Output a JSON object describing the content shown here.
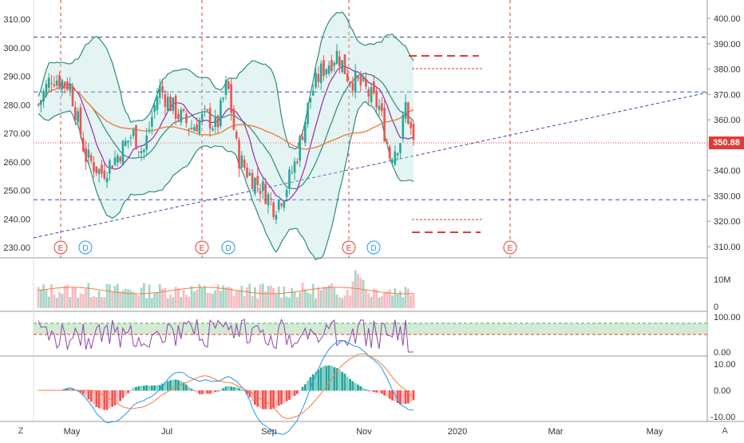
{
  "chart_data": {
    "type": "candlestick",
    "left_axis_ticks": [
      "310.00",
      "300.00",
      "290.00",
      "280.00",
      "270.00",
      "260.00",
      "250.00",
      "240.00",
      "230.00"
    ],
    "left_axis_values": [
      310,
      300,
      290,
      280,
      270,
      260,
      250,
      240,
      230
    ],
    "right_axis_ticks": [
      "400.00",
      "390.00",
      "380.00",
      "370.00",
      "360.00",
      "350.00",
      "340.00",
      "330.00",
      "320.00",
      "310.00"
    ],
    "right_axis_values": [
      400,
      390,
      380,
      370,
      360,
      350,
      340,
      330,
      320,
      310
    ],
    "price_label": "350.88",
    "price_value": 350.88,
    "price_label_color": "#e53935",
    "time_labels": [
      "May",
      "Jul",
      "Sep",
      "Nov",
      "2020",
      "Mar",
      "May"
    ],
    "volume_ticks": [
      "10M",
      "0"
    ],
    "rsi_ticks": [
      "100.00",
      "0.00"
    ],
    "macd_ticks": [
      "10.00",
      "0.00",
      "-10.00"
    ],
    "event_markers": [
      {
        "type": "E",
        "color": "#e53935"
      },
      {
        "type": "D",
        "color": "#2196f3"
      },
      {
        "type": "E",
        "color": "#e53935"
      },
      {
        "type": "D",
        "color": "#2196f3"
      },
      {
        "type": "E",
        "color": "#e53935"
      },
      {
        "type": "D",
        "color": "#2196f3"
      },
      {
        "type": "E",
        "color": "#e53935"
      }
    ],
    "horizontal_levels_right": [
      392.6,
      371.0,
      328.5
    ],
    "colors": {
      "up": "#26a69a",
      "down": "#ef5350",
      "band": "#b2dfdb",
      "bb_line": "#2e8b7d",
      "ma_orange": "#f57c42",
      "ma_purple": "#9c27b0",
      "rsi": "#8e44ad",
      "rsi_zone": "#c8e6c9"
    }
  },
  "corner_left": "Z",
  "corner_right": "A"
}
